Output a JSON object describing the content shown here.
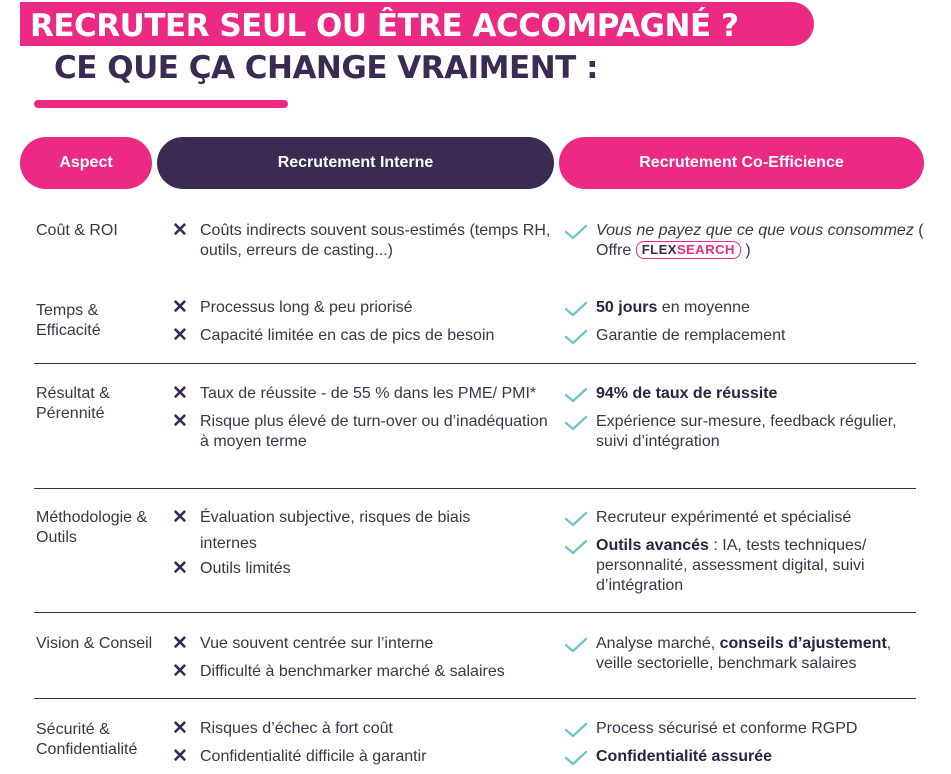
{
  "title": {
    "line1": "RECRUTER SEUL OU ÊTRE ACCOMPAGNÉ ?",
    "line2": "CE QUE ÇA CHANGE VRAIMENT :"
  },
  "headers": {
    "aspect": "Aspect",
    "interne": "Recrutement Interne",
    "coefficience": "Recrutement Co-Efficience"
  },
  "rows": [
    {
      "aspect": "Coût & ROI",
      "interne": [
        "Coûts indirects souvent sous-estimés (temps RH, outils, erreurs de casting...)"
      ],
      "coeff_a": "Vous ne payez que ce que vous consommez",
      "coeff_b": "( Offre",
      "coeff_c": ")",
      "badge_p1": "FLEX",
      "badge_p2": "SEARCH"
    },
    {
      "aspect": "Temps & Efficacité",
      "interne": [
        "Processus long & peu priorisé",
        "Capacité limitée en cas de pics de besoin"
      ],
      "c1_bold": "50 jours",
      "c1_rest": " en moyenne",
      "c2": "Garantie de remplacement"
    },
    {
      "aspect": "Résultat & Pérennité",
      "interne": [
        "Taux de réussite - de 55 % dans les PME/ PMI*",
        "Risque plus élevé de turn-over ou d’inadéquation à moyen terme"
      ],
      "c1_bold": "94% de taux de réussite",
      "c2": "Expérience sur-mesure, feedback régulier, suivi d’intégration"
    },
    {
      "aspect": "Méthodologie & Outils",
      "interne": [
        "Évaluation subjective, risques de biais internes",
        "Outils limités"
      ],
      "c1": "Recruteur expérimenté et spécialisé",
      "c2_bold": "Outils avancés",
      "c2_rest": " : IA, tests techniques/ personnalité, assessment digital, suivi d’intégration"
    },
    {
      "aspect": "Vision & Conseil",
      "interne": [
        "Vue souvent centrée sur l’interne",
        "Difficulté à benchmarker marché & salaires"
      ],
      "c1_a": "Analyse marché, ",
      "c1_bold": "conseils d’ajustement",
      "c1_b": ", veille sectorielle, benchmark salaires"
    },
    {
      "aspect": "Sécurité & Confidentialité",
      "interne": [
        "Risques d’échec à fort coût",
        "Confidentialité difficile à garantir"
      ],
      "c1": "Process sécurisé et conforme RGPD",
      "c2_bold": "Confidentialité assurée"
    }
  ]
}
